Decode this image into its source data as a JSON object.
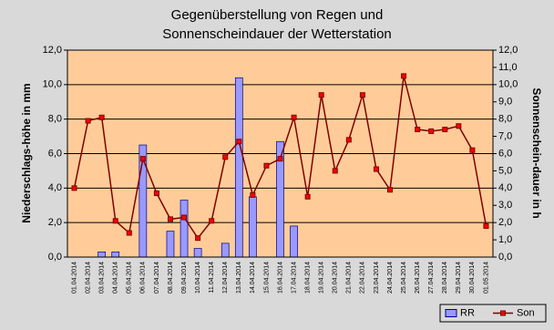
{
  "chart_data": {
    "type": "bar",
    "title": "Gegenüberstellung von Regen und Sonnenscheindauer der Wetterstation",
    "ylabel": "Niederschlags-höhe in mm",
    "y2label": "Sonnenschein-dauer in h",
    "categories": [
      "01.04.2014",
      "02.04.2014",
      "03.04.2014",
      "04.04.2014",
      "05.04.2014",
      "06.04.2014",
      "07.04.2014",
      "08.04.2014",
      "09.04.2014",
      "10.04.2014",
      "11.04.2014",
      "12.04.2014",
      "13.04.2014",
      "14.04.2014",
      "15.04.2014",
      "16.04.2014",
      "17.04.2014",
      "18.04.2014",
      "19.04.2014",
      "20.04.2014",
      "21.04.2014",
      "22.04.2014",
      "23.04.2014",
      "24.04.2014",
      "25.04.2014",
      "26.04.2014",
      "27.04.2014",
      "28.04.2014",
      "29.04.2014",
      "30.04.2014",
      "01.05.2014"
    ],
    "series": [
      {
        "name": "RR",
        "type": "bar",
        "axis": "y",
        "color": "#9999ff",
        "values": [
          0,
          0,
          0.3,
          0.3,
          0,
          6.5,
          0,
          1.5,
          3.3,
          0.5,
          0,
          0.8,
          10.4,
          3.5,
          0,
          6.7,
          1.8,
          0,
          0,
          0,
          0,
          0,
          0,
          0,
          0,
          0,
          0,
          0,
          0,
          0,
          0
        ]
      },
      {
        "name": "Son",
        "type": "line",
        "axis": "y2",
        "color": "#800000",
        "marker_color": "#ff0000",
        "values": [
          4.0,
          7.9,
          8.1,
          2.1,
          1.4,
          5.7,
          3.7,
          2.2,
          2.3,
          1.1,
          2.1,
          5.8,
          6.7,
          3.6,
          5.3,
          5.7,
          8.1,
          3.5,
          9.4,
          5.0,
          6.8,
          9.4,
          5.1,
          3.9,
          10.5,
          7.4,
          7.3,
          7.4,
          7.6,
          6.2,
          1.8
        ]
      }
    ],
    "ylim": [
      0,
      12
    ],
    "yticks": [
      {
        "value": 0,
        "label": "0,0"
      },
      {
        "value": 2,
        "label": "2,0"
      },
      {
        "value": 4,
        "label": "4,0"
      },
      {
        "value": 6,
        "label": "6,0"
      },
      {
        "value": 8,
        "label": "8,0"
      },
      {
        "value": 10,
        "label": "10,0"
      },
      {
        "value": 12,
        "label": "12,0"
      }
    ],
    "y2lim": [
      0,
      12
    ],
    "y2ticks": [
      {
        "value": 0,
        "label": "0,0"
      },
      {
        "value": 1,
        "label": "1,0"
      },
      {
        "value": 2,
        "label": "2,0"
      },
      {
        "value": 3,
        "label": "3,0"
      },
      {
        "value": 4,
        "label": "4,0"
      },
      {
        "value": 5,
        "label": "5,0"
      },
      {
        "value": 6,
        "label": "6,0"
      },
      {
        "value": 7,
        "label": "7,0"
      },
      {
        "value": 8,
        "label": "8,0"
      },
      {
        "value": 9,
        "label": "9,0"
      },
      {
        "value": 10,
        "label": "10,0"
      },
      {
        "value": 11,
        "label": "11,0"
      },
      {
        "value": 12,
        "label": "12,0"
      }
    ],
    "grid": true,
    "plot_background": "#ffcc99",
    "legend": "bottom-right"
  }
}
